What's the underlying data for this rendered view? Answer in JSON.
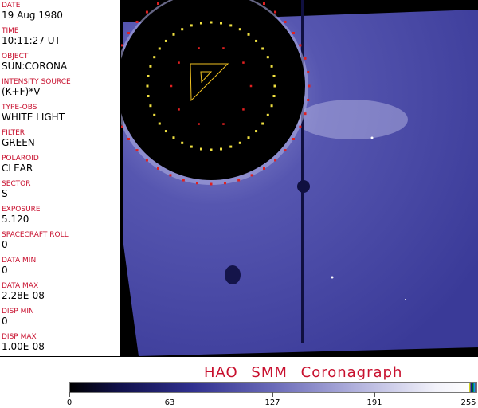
{
  "fields": [
    {
      "label": "DATE",
      "value": "19 Aug 1980"
    },
    {
      "label": "TIME",
      "value": "10:11:27 UT"
    },
    {
      "label": "OBJECT",
      "value": "SUN:CORONA"
    },
    {
      "label": "INTENSITY SOURCE",
      "value": "(K+F)*V"
    },
    {
      "label": "TYPE-OBS",
      "value": "WHITE LIGHT"
    },
    {
      "label": "FILTER",
      "value": "GREEN"
    },
    {
      "label": "POLAROID",
      "value": "CLEAR"
    },
    {
      "label": "SECTOR",
      "value": "S"
    },
    {
      "label": "EXPOSURE",
      "value": "5.120"
    },
    {
      "label": "SPACECRAFT ROLL",
      "value": "0"
    },
    {
      "label": "DATA MIN",
      "value": "0"
    },
    {
      "label": "DATA MAX",
      "value": "2.28E-08"
    },
    {
      "label": "DISP MIN",
      "value": "0"
    },
    {
      "label": "DISP MAX",
      "value": "1.00E-08"
    }
  ],
  "title": "HAO  SMM  Coronagraph",
  "colorbar": {
    "ticks": [
      "0",
      "63",
      "127",
      "191",
      "255"
    ],
    "colors": {
      "low": "#000000",
      "mid": "#6a6ab8",
      "high": "#ffffff"
    }
  }
}
